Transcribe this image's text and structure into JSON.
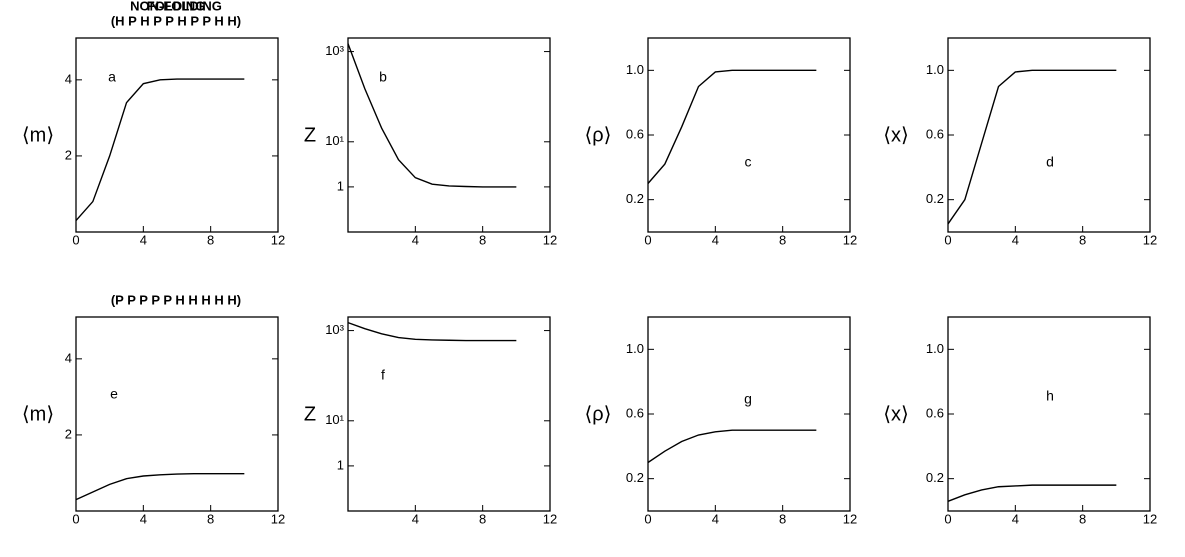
{
  "chart_data": [
    {
      "type": "line",
      "title": "FOLDING",
      "subtitle": "(H P H P P H P P H H)",
      "annotation": "a",
      "ylabel": "⟨m⟩",
      "color": "#000000",
      "x": [
        0,
        1,
        2,
        3,
        4,
        5,
        6,
        7,
        8,
        9,
        10
      ],
      "values": [
        0.3,
        0.8,
        2.0,
        3.4,
        3.9,
        4.0,
        4.02,
        4.02,
        4.02,
        4.02,
        4.02
      ],
      "xlim": [
        0,
        12
      ],
      "xticks": [
        0,
        4,
        8,
        12
      ],
      "ylim": [
        0,
        5.1
      ],
      "yticks": [
        2,
        4
      ]
    },
    {
      "type": "line",
      "annotation": "b",
      "ylabel": "Z",
      "color": "#000000",
      "log_y": true,
      "x": [
        0,
        1,
        2,
        3,
        4,
        5,
        6,
        7,
        8,
        9,
        10
      ],
      "values": [
        1500,
        150,
        20,
        4,
        1.6,
        1.15,
        1.05,
        1.02,
        1,
        1,
        1
      ],
      "xlim": [
        0,
        12
      ],
      "xticks": [
        4,
        8,
        12
      ],
      "ylim": [
        0.1,
        2000
      ],
      "yticks": [
        1,
        {
          "value": 10,
          "label": "10¹"
        },
        {
          "value": 1000,
          "label": "10³"
        }
      ]
    },
    {
      "type": "line",
      "annotation": "c",
      "ylabel": "⟨ρ⟩",
      "color": "#000000",
      "x": [
        0,
        1,
        2,
        3,
        4,
        5,
        6,
        7,
        8,
        9,
        10
      ],
      "values": [
        0.3,
        0.42,
        0.65,
        0.9,
        0.99,
        1.0,
        1.0,
        1.0,
        1.0,
        1.0,
        1.0
      ],
      "xlim": [
        0,
        12
      ],
      "xticks": [
        0,
        4,
        8,
        12
      ],
      "ylim": [
        0,
        1.2
      ],
      "yticks": [
        0.2,
        0.6,
        {
          "value": 1,
          "label": "1.0"
        }
      ]
    },
    {
      "type": "line",
      "annotation": "d",
      "ylabel": "⟨x⟩",
      "color": "#000000",
      "x": [
        0,
        1,
        2,
        3,
        4,
        5,
        6,
        7,
        8,
        9,
        10
      ],
      "values": [
        0.05,
        0.2,
        0.55,
        0.9,
        0.99,
        1.0,
        1.0,
        1.0,
        1.0,
        1.0,
        1.0
      ],
      "xlim": [
        0,
        12
      ],
      "xticks": [
        0,
        4,
        8,
        12
      ],
      "ylim": [
        0,
        1.2
      ],
      "yticks": [
        0.2,
        0.6,
        {
          "value": 1,
          "label": "1.0"
        }
      ]
    },
    {
      "type": "line",
      "title": "NON-FOLDING",
      "subtitle": "(P P P P P H H H H H)",
      "annotation": "e",
      "ylabel": "⟨m⟩",
      "color": "#000000",
      "x": [
        0,
        1,
        2,
        3,
        4,
        5,
        6,
        7,
        8,
        9,
        10
      ],
      "values": [
        0.3,
        0.5,
        0.7,
        0.85,
        0.92,
        0.95,
        0.97,
        0.98,
        0.98,
        0.98,
        0.98
      ],
      "xlim": [
        0,
        12
      ],
      "xticks": [
        0,
        4,
        8,
        12
      ],
      "ylim": [
        0,
        5.1
      ],
      "yticks": [
        2,
        4
      ]
    },
    {
      "type": "line",
      "annotation": "f",
      "ylabel": "Z",
      "color": "#000000",
      "log_y": true,
      "x": [
        0,
        1,
        2,
        3,
        4,
        5,
        6,
        7,
        8,
        9,
        10
      ],
      "values": [
        1500,
        1100,
        850,
        700,
        640,
        620,
        610,
        600,
        600,
        600,
        600
      ],
      "xlim": [
        0,
        12
      ],
      "xticks": [
        4,
        8,
        12
      ],
      "ylim": [
        0.1,
        2000
      ],
      "yticks": [
        1,
        {
          "value": 10,
          "label": "10¹"
        },
        {
          "value": 1000,
          "label": "10³"
        }
      ]
    },
    {
      "type": "line",
      "annotation": "g",
      "ylabel": "⟨ρ⟩",
      "color": "#000000",
      "x": [
        0,
        1,
        2,
        3,
        4,
        5,
        6,
        7,
        8,
        9,
        10
      ],
      "values": [
        0.3,
        0.37,
        0.43,
        0.47,
        0.49,
        0.5,
        0.5,
        0.5,
        0.5,
        0.5,
        0.5
      ],
      "xlim": [
        0,
        12
      ],
      "xticks": [
        0,
        4,
        8,
        12
      ],
      "ylim": [
        0,
        1.2
      ],
      "yticks": [
        0.2,
        0.6,
        {
          "value": 1,
          "label": "1.0"
        }
      ]
    },
    {
      "type": "line",
      "annotation": "h",
      "ylabel": "⟨x⟩",
      "color": "#000000",
      "x": [
        0,
        1,
        2,
        3,
        4,
        5,
        6,
        7,
        8,
        9,
        10
      ],
      "values": [
        0.06,
        0.1,
        0.13,
        0.15,
        0.155,
        0.16,
        0.16,
        0.16,
        0.16,
        0.16,
        0.16
      ],
      "xlim": [
        0,
        12
      ],
      "xticks": [
        0,
        4,
        8,
        12
      ],
      "ylim": [
        0,
        1.2
      ],
      "yticks": [
        0.2,
        0.6,
        {
          "value": 1,
          "label": "1.0"
        }
      ]
    }
  ]
}
